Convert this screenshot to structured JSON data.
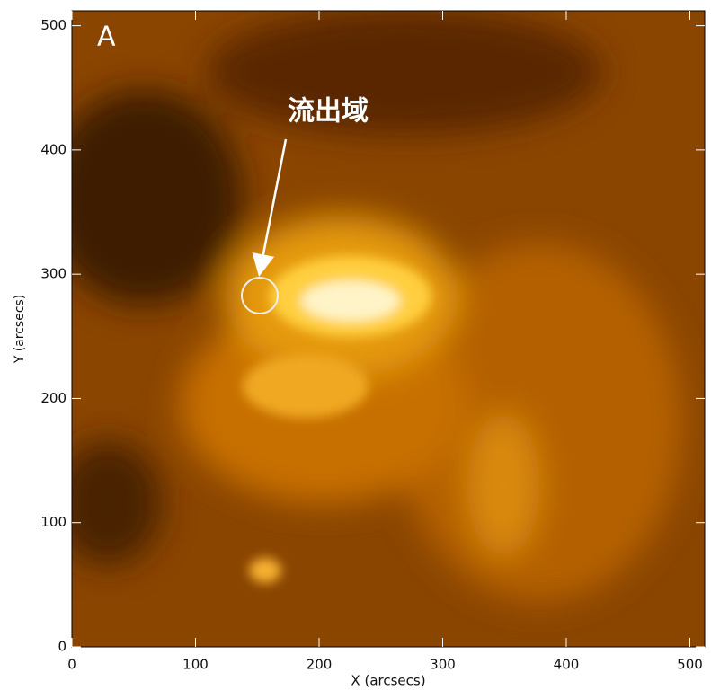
{
  "panel_label": "A",
  "annotation": "流出域",
  "xaxis": {
    "label": "X (arcsecs)",
    "lim": [
      0,
      512
    ],
    "ticks": [
      0,
      100,
      200,
      300,
      400,
      500
    ]
  },
  "yaxis": {
    "label": "Y (arcsecs)",
    "lim": [
      0,
      512
    ],
    "ticks": [
      0,
      100,
      200,
      300,
      400,
      500
    ]
  }
}
